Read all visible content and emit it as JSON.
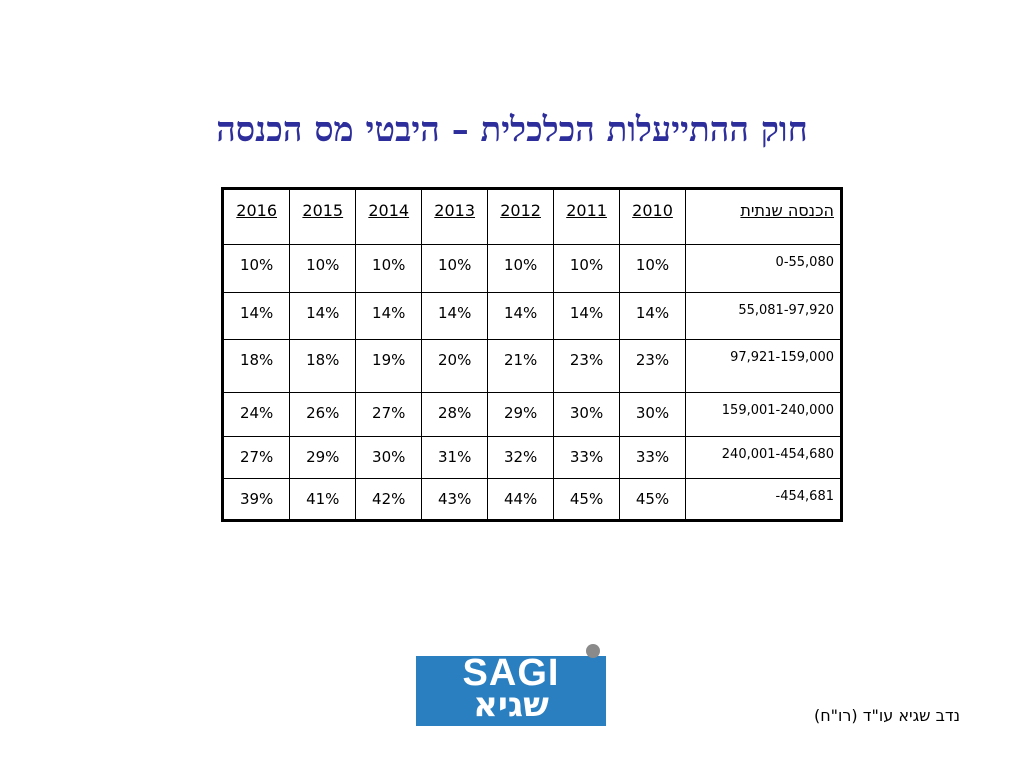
{
  "slide": {
    "title": "חוק ההתייעלות הכלכלית – היבטי מס הכנסה",
    "credit": "נדב שגיא עו\"ד (רו\"ח)"
  },
  "table": {
    "income_header": "הכנסה שנתית",
    "years": [
      "2010",
      "2011",
      "2012",
      "2013",
      "2014",
      "2015",
      "2016"
    ],
    "rows": [
      {
        "bracket": "0-55,080",
        "rates": [
          "10%",
          "10%",
          "10%",
          "10%",
          "10%",
          "10%",
          "10%"
        ]
      },
      {
        "bracket": "55,081-97,920",
        "rates": [
          "14%",
          "14%",
          "14%",
          "14%",
          "14%",
          "14%",
          "14%"
        ]
      },
      {
        "bracket": "97,921-159,000",
        "rates": [
          "23%",
          "23%",
          "21%",
          "20%",
          "19%",
          "18%",
          "18%"
        ]
      },
      {
        "bracket": "159,001-240,000",
        "rates": [
          "30%",
          "30%",
          "29%",
          "28%",
          "27%",
          "26%",
          "24%"
        ]
      },
      {
        "bracket": "240,001-454,680",
        "rates": [
          "33%",
          "33%",
          "32%",
          "31%",
          "30%",
          "29%",
          "27%"
        ]
      },
      {
        "bracket": "-454,681",
        "rates": [
          "45%",
          "45%",
          "44%",
          "43%",
          "42%",
          "41%",
          "39%"
        ]
      }
    ]
  },
  "logo": {
    "latin": "SAGI",
    "hebrew": "שגיא",
    "box_color": "#2a7fc1",
    "dot_color": "#8a8a8a"
  },
  "colors": {
    "title": "#2d2d9c"
  }
}
